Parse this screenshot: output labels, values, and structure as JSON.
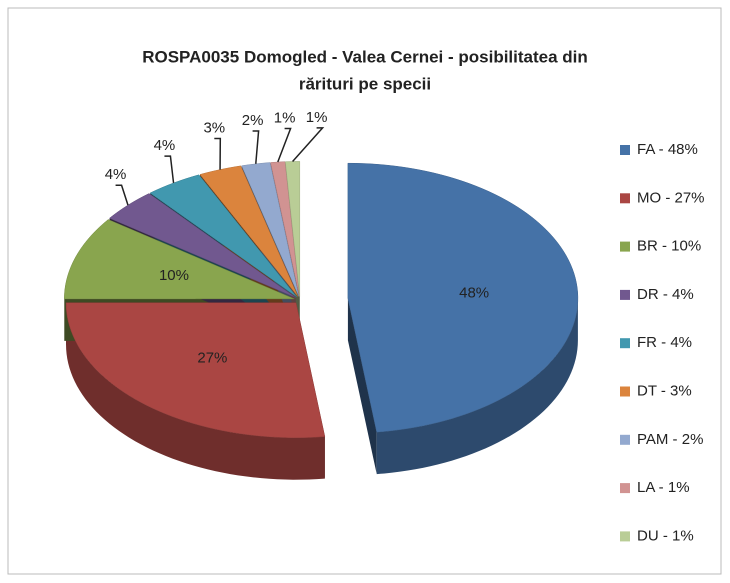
{
  "chart_data": {
    "type": "pie3d",
    "title": [
      "ROSPA0035 Domogled - Valea Cernei - posibilitatea din",
      "rărituri pe specii"
    ],
    "categories": [
      "FA - 48%",
      "MO - 27%",
      "BR - 10%",
      "DR - 4%",
      "FR - 4%",
      "DT - 3%",
      "PAM - 2%",
      "LA - 1%",
      "DU - 1%"
    ],
    "values": [
      48,
      27,
      10,
      4,
      4,
      3,
      2,
      1,
      1
    ],
    "value_labels": [
      "48%",
      "27%",
      "10%",
      "4%",
      "4%",
      "3%",
      "2%",
      "1%",
      "1%"
    ],
    "colors": [
      "#4572a7",
      "#aa4643",
      "#89a54e",
      "#71588f",
      "#4198af",
      "#db843d",
      "#93a9cf",
      "#d19392",
      "#b9cd96"
    ],
    "legend": "right"
  }
}
